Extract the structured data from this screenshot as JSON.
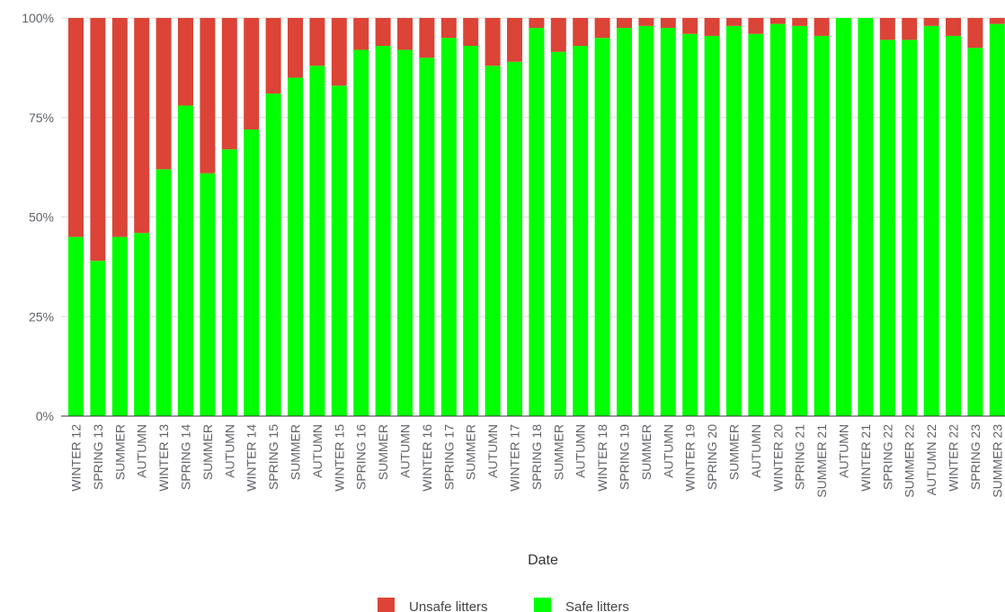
{
  "chart_data": {
    "type": "bar",
    "stacked": true,
    "percent": true,
    "xlabel": "Date",
    "ylabel": "",
    "ylim": [
      0,
      100
    ],
    "y_ticks": [
      "0%",
      "25%",
      "50%",
      "75%",
      "100%"
    ],
    "grid": true,
    "legend_position": "bottom",
    "categories": [
      "WINTER 12",
      "SPRING 13",
      "SUMMER",
      "AUTUMN",
      "WINTER 13",
      "SPRING 14",
      "SUMMER",
      "AUTUMN",
      "WINTER 14",
      "SPRING 15",
      "SUMMER",
      "AUTUMN",
      "WINTER 15",
      "SPRING 16",
      "SUMMER",
      "AUTUMN",
      "WINTER 16",
      "SPRING 17",
      "SUMMER",
      "AUTUMN",
      "WINTER 17",
      "SPRING 18",
      "SUMMER",
      "AUTUMN",
      "WINTER 18",
      "SPRING 19",
      "SUMMER",
      "AUTUMN",
      "WINTER 19",
      "SPRING 20",
      "SUMMER",
      "AUTUMN",
      "WINTER 20",
      "SPRING 21",
      "SUMMER 21",
      "AUTUMN",
      "WINTER 21",
      "SPRING 22",
      "SUMMER 22",
      "AUTUMN 22",
      "WINTER 22",
      "SPRING 23",
      "SUMMER 23"
    ],
    "series": [
      {
        "name": "Unsafe litters",
        "color": "#db4437",
        "values": [
          55,
          61,
          55,
          54,
          38,
          22,
          39,
          33,
          28,
          19,
          15,
          12,
          17,
          8,
          7,
          8,
          10,
          5,
          7,
          12,
          11,
          2.5,
          8.5,
          7,
          5,
          2.5,
          2,
          2.5,
          4,
          4.5,
          2,
          4,
          1.5,
          2,
          4.5,
          0,
          0,
          5.5,
          5.5,
          2,
          4.5,
          7.5,
          1.5
        ]
      },
      {
        "name": "Safe litters",
        "color": "#00ff00",
        "values": [
          45,
          39,
          45,
          46,
          62,
          78,
          61,
          67,
          72,
          81,
          85,
          88,
          83,
          92,
          93,
          92,
          90,
          95,
          93,
          88,
          89,
          97.5,
          91.5,
          93,
          95,
          97.5,
          98,
          97.5,
          96,
          95.5,
          98,
          96,
          98.5,
          98,
          95.5,
          100,
          100,
          94.5,
          94.5,
          98,
          95.5,
          92.5,
          98.5
        ]
      }
    ]
  }
}
